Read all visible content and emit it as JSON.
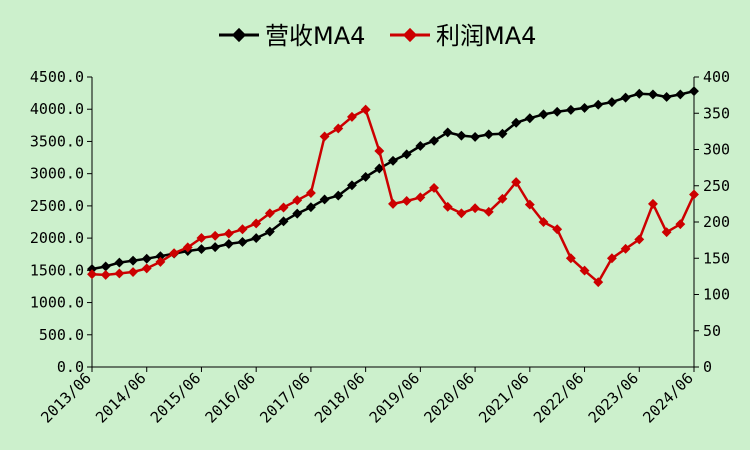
{
  "chart_data": {
    "type": "line",
    "legend_position": "top-center",
    "grid": false,
    "x_ticks": [
      "2013/06",
      "2014/06",
      "2015/06",
      "2016/06",
      "2017/06",
      "2018/06",
      "2019/06",
      "2020/06",
      "2021/06",
      "2022/06",
      "2023/06",
      "2024/06"
    ],
    "y_left": {
      "ylim": [
        0,
        4500
      ],
      "ticks": [
        "0.0",
        "500.0",
        "1000.0",
        "1500.0",
        "2000.0",
        "2500.0",
        "3000.0",
        "3500.0",
        "4000.0",
        "4500.0"
      ]
    },
    "y_right": {
      "ylim": [
        0,
        400
      ],
      "ticks": [
        "0",
        "50",
        "100",
        "150",
        "200",
        "250",
        "300",
        "350",
        "400"
      ]
    },
    "series": [
      {
        "name": "营收MA4",
        "axis": "left",
        "color": "#000000",
        "values": [
          1520,
          1560,
          1620,
          1650,
          1680,
          1720,
          1760,
          1800,
          1830,
          1860,
          1910,
          1940,
          2000,
          2100,
          2260,
          2380,
          2480,
          2600,
          2660,
          2820,
          2950,
          3080,
          3200,
          3300,
          3430,
          3510,
          3640,
          3590,
          3570,
          3610,
          3620,
          3790,
          3860,
          3920,
          3960,
          3990,
          4020,
          4070,
          4110,
          4180,
          4240,
          4230,
          4190,
          4230,
          4280
        ]
      },
      {
        "name": "利润MA4",
        "axis": "right",
        "color": "#cc0000",
        "values": [
          128,
          127,
          129,
          131,
          136,
          145,
          157,
          165,
          178,
          181,
          184,
          190,
          198,
          212,
          220,
          230,
          240,
          318,
          329,
          345,
          355,
          298,
          225,
          229,
          234,
          247,
          221,
          212,
          219,
          214,
          232,
          255,
          224,
          200,
          190,
          150,
          133,
          117,
          150,
          163,
          176,
          225,
          186,
          197,
          238
        ]
      }
    ]
  }
}
